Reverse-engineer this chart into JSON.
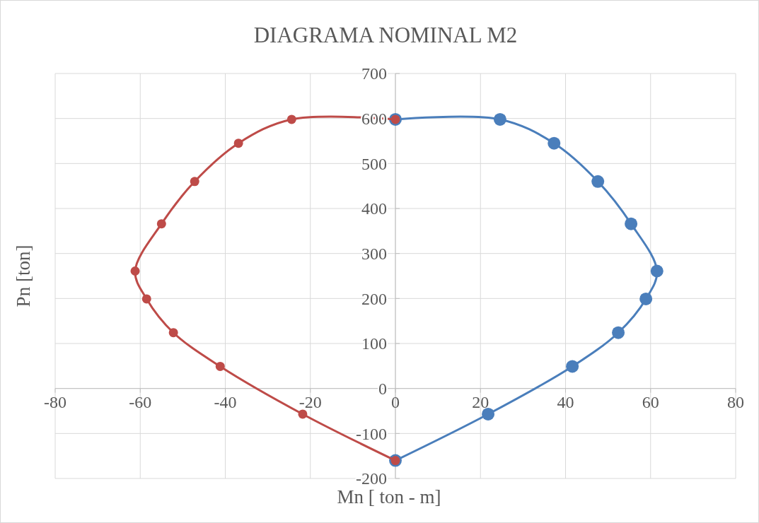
{
  "chart_data": {
    "type": "line",
    "title": "DIAGRAMA NOMINAL M2",
    "xlabel": "Mn [ ton - m]",
    "ylabel": "Pn [ton]",
    "xlim": [
      -80,
      80
    ],
    "xticks": [
      -80,
      -60,
      -40,
      -20,
      0,
      20,
      40,
      60,
      80
    ],
    "ylim": [
      -200,
      700
    ],
    "yticks": [
      -200,
      -100,
      0,
      100,
      200,
      300,
      400,
      500,
      600,
      700
    ],
    "grid": true,
    "marker": "circle",
    "line_style": "solid",
    "series": [
      {
        "color": "#4a7ebb",
        "x": [
          0,
          24.6,
          37.3,
          47.6,
          55.4,
          61.5,
          58.9,
          52.4,
          41.6,
          21.8,
          0
        ],
        "values": [
          598,
          598,
          545,
          460,
          366,
          261,
          199,
          124,
          49,
          -57,
          -160
        ]
      },
      {
        "color": "#be4b48",
        "x": [
          0,
          -24.4,
          -36.9,
          -47.2,
          -55.0,
          -61.2,
          -58.5,
          -52.2,
          -41.2,
          -21.8,
          0
        ],
        "values": [
          598,
          598,
          545,
          460,
          366,
          261,
          199,
          124,
          49,
          -57,
          -160
        ]
      }
    ]
  }
}
